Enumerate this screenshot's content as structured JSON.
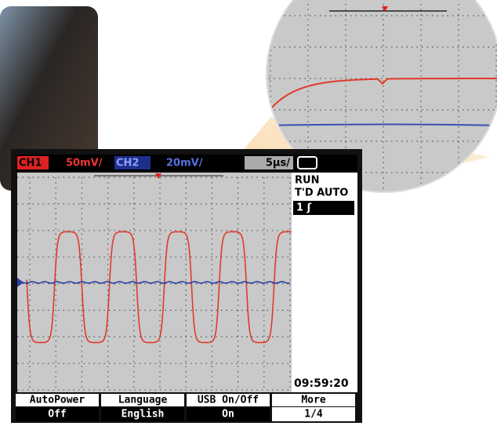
{
  "header": {
    "ch1": "CH1",
    "ch1_scale": "50mV/",
    "ch2": "CH2",
    "ch2_scale": "20mV/",
    "timebase": "5μs/"
  },
  "status": {
    "mode": "RUN",
    "trigger": "T'D AUTO",
    "trigger_source": "1 ʃ",
    "clock": "09:59:20"
  },
  "softkeys": [
    {
      "label": "AutoPower",
      "value": "Off"
    },
    {
      "label": "Language",
      "value": "English"
    },
    {
      "label": "USB On/Off",
      "value": "On"
    },
    {
      "label": "More",
      "value": "1/4"
    }
  ]
}
